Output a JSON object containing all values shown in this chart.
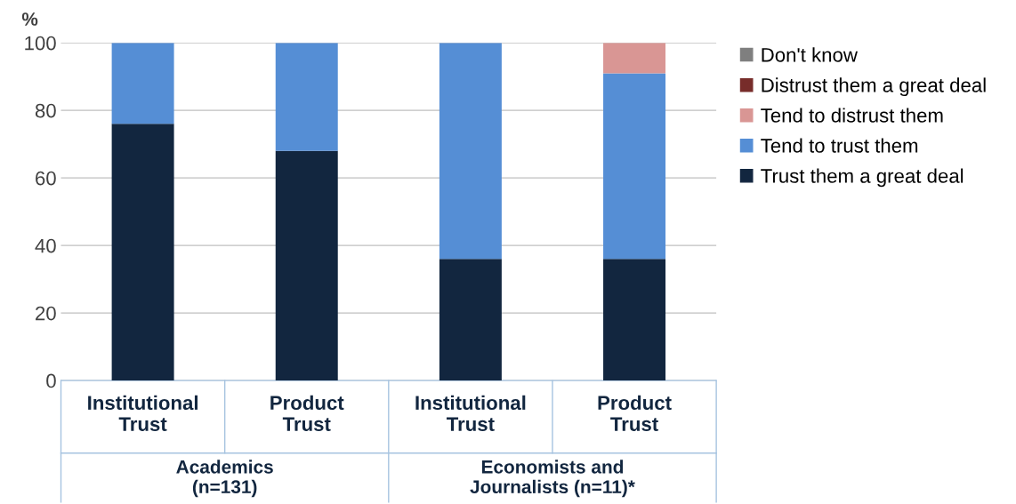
{
  "chart_data": {
    "type": "bar",
    "stacked": true,
    "ylabel": "%",
    "categories": [
      "Institutional\nTrust",
      "Product\nTrust",
      "Institutional\nTrust",
      "Product\nTrust"
    ],
    "series": [
      {
        "name": "Trust them a great deal",
        "color": "#12263f",
        "values": [
          76,
          68,
          36,
          36
        ]
      },
      {
        "name": "Tend to trust them",
        "color": "#558ed5",
        "values": [
          24,
          32,
          64,
          55
        ]
      },
      {
        "name": "Tend to distrust them",
        "color": "#d99694",
        "values": [
          0,
          0,
          0,
          9
        ]
      },
      {
        "name": "Distrust them a great deal",
        "color": "#772c2a",
        "values": [
          0,
          0,
          0,
          0
        ]
      },
      {
        "name": "Don't know",
        "color": "#7f7f7f",
        "values": [
          0,
          0,
          0,
          0
        ]
      }
    ],
    "annotations": [
      "Academics\n(n=131)",
      "Economists and\nJournalists (n=11)*"
    ],
    "ylim": [
      0,
      100
    ],
    "yticks": [
      0,
      20,
      40,
      60,
      80,
      100
    ],
    "grid": "y",
    "legend": "right"
  }
}
